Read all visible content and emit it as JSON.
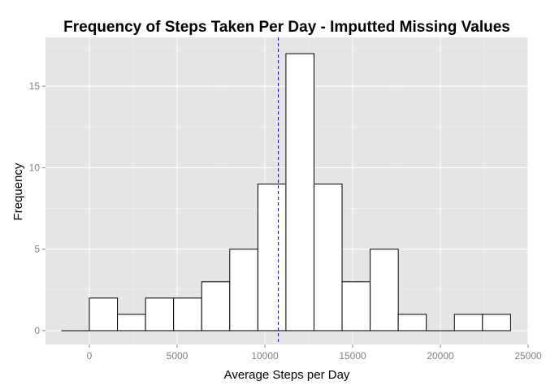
{
  "chart_data": {
    "type": "bar",
    "title": "Frequency of Steps Taken Per Day - Imputted Missing Values",
    "xlabel": "Average Steps per Day",
    "ylabel": "Frequency",
    "bin_width": 1600,
    "bins": [
      {
        "start": -1600,
        "end": 0,
        "count": 0
      },
      {
        "start": 0,
        "end": 1600,
        "count": 2
      },
      {
        "start": 1600,
        "end": 3200,
        "count": 1
      },
      {
        "start": 3200,
        "end": 4800,
        "count": 2
      },
      {
        "start": 4800,
        "end": 6400,
        "count": 2
      },
      {
        "start": 6400,
        "end": 8000,
        "count": 3
      },
      {
        "start": 8000,
        "end": 9600,
        "count": 5
      },
      {
        "start": 9600,
        "end": 11200,
        "count": 9
      },
      {
        "start": 11200,
        "end": 12800,
        "count": 17
      },
      {
        "start": 12800,
        "end": 14400,
        "count": 9
      },
      {
        "start": 14400,
        "end": 16000,
        "count": 3
      },
      {
        "start": 16000,
        "end": 17600,
        "count": 5
      },
      {
        "start": 17600,
        "end": 19200,
        "count": 1
      },
      {
        "start": 19200,
        "end": 20800,
        "count": 0
      },
      {
        "start": 20800,
        "end": 22400,
        "count": 1
      },
      {
        "start": 22400,
        "end": 24000,
        "count": 1
      }
    ],
    "mean_line": {
      "x": 10766,
      "color": "#0000ff",
      "style": "dashed"
    },
    "x_ticks": [
      0,
      5000,
      10000,
      15000,
      20000,
      25000
    ],
    "x_tick_labels": [
      "0",
      "5000",
      "10000",
      "15000",
      "20000",
      "25000"
    ],
    "y_ticks": [
      0,
      5,
      10,
      15
    ],
    "y_tick_labels": [
      "0",
      "5",
      "10",
      "15"
    ],
    "xlim": [
      -2500,
      25000
    ],
    "ylim": [
      -0.85,
      18
    ],
    "grid": true,
    "colors": {
      "panel_bg": "#e5e5e5",
      "grid_major": "#ffffff",
      "grid_minor": "#f2f2f2",
      "bar_fill": "#ffffff",
      "bar_stroke": "#000000"
    }
  }
}
